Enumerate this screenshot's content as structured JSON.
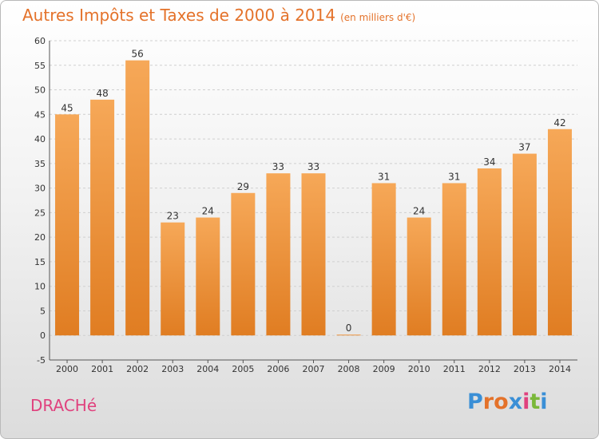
{
  "title": "Autres Impôts et Taxes de 2000 à 2014",
  "title_unit": "(en milliers d'€)",
  "town": "DRACHé",
  "logo": {
    "letters": [
      "P",
      "r",
      "o",
      "x",
      "i",
      "t",
      "i"
    ],
    "colors": [
      "#3a8fd6",
      "#e4722a",
      "#e4722a",
      "#3a8fd6",
      "#e0427e",
      "#7ab83a",
      "#3a8fd6"
    ]
  },
  "colors": {
    "bar_light": "#f6a858",
    "bar_dark": "#e07d22",
    "title": "#e4722a",
    "town": "#e0427e"
  },
  "chart_data": {
    "type": "bar",
    "categories": [
      "2000",
      "2001",
      "2002",
      "2003",
      "2004",
      "2005",
      "2006",
      "2007",
      "2008",
      "2009",
      "2010",
      "2011",
      "2012",
      "2013",
      "2014"
    ],
    "values": [
      45,
      48,
      56,
      23,
      24,
      29,
      33,
      33,
      0,
      31,
      24,
      31,
      34,
      37,
      42
    ],
    "title": "Autres Impôts et Taxes de 2000 à 2014",
    "xlabel": "",
    "ylabel": "",
    "ylim": [
      -5,
      60
    ],
    "yticks": [
      -5,
      0,
      5,
      10,
      15,
      20,
      25,
      30,
      35,
      40,
      45,
      50,
      55,
      60
    ],
    "grid": true
  }
}
